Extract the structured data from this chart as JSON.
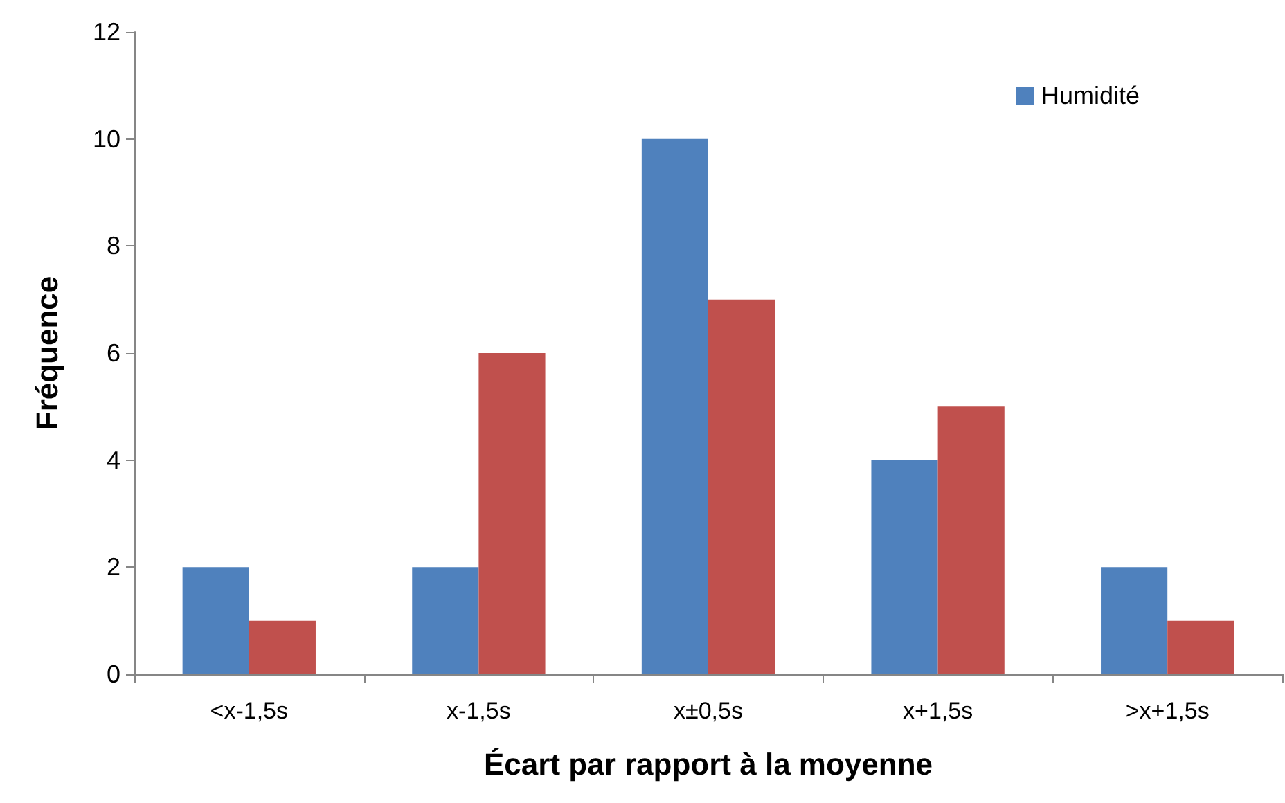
{
  "chart_data": {
    "type": "bar",
    "xlabel": "Écart par rapport à la moyenne",
    "ylabel": "Fréquence",
    "categories": [
      "<x-1,5s",
      "x-1,5s",
      "x±0,5s",
      "x+1,5s",
      ">x+1,5s"
    ],
    "series": [
      {
        "name": "Humidité",
        "color": "#4f81bd",
        "values": [
          2,
          2,
          10,
          4,
          2
        ]
      },
      {
        "color": "#c0504d",
        "values": [
          1,
          6,
          7,
          5,
          1
        ]
      }
    ],
    "ylim": [
      0,
      12
    ],
    "yticks": [
      0,
      2,
      4,
      6,
      8,
      10,
      12
    ],
    "grid": false,
    "legend": "top right"
  }
}
